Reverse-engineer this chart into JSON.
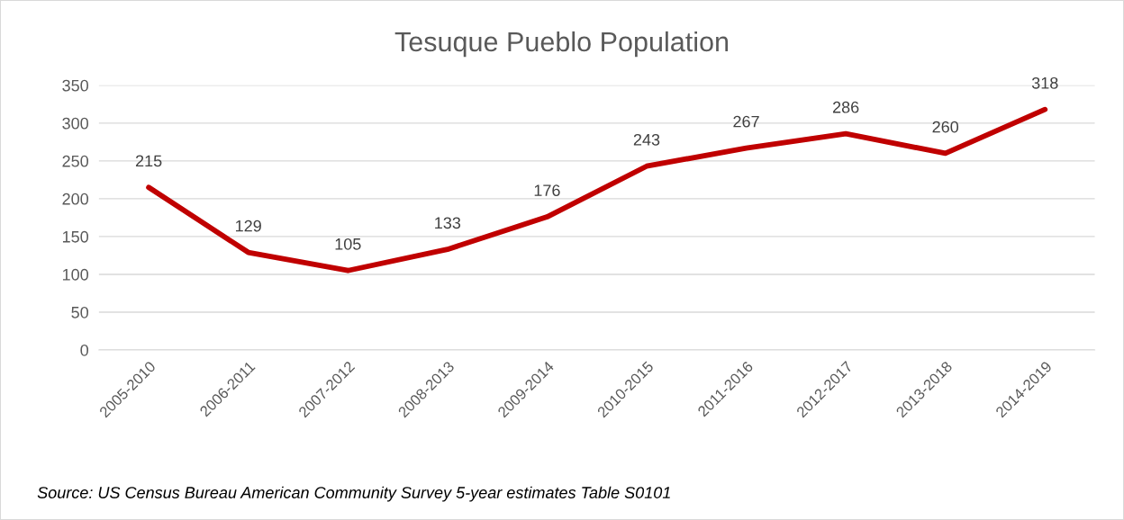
{
  "chart_data": {
    "type": "line",
    "title": "Tesuque Pueblo Population",
    "categories": [
      "2005-2010",
      "2006-2011",
      "2007-2012",
      "2008-2013",
      "2009-2014",
      "2010-2015",
      "2011-2016",
      "2012-2017",
      "2013-2018",
      "2014-2019"
    ],
    "series": [
      {
        "color": "#c00000",
        "values": [
          215,
          129,
          105,
          133,
          176,
          243,
          267,
          286,
          260,
          318
        ]
      }
    ],
    "ylim": [
      0,
      350
    ],
    "yticks": [
      0,
      50,
      100,
      150,
      200,
      250,
      300,
      350
    ],
    "grid": "y",
    "data_labels": true,
    "marker": "none",
    "line_style": "solid",
    "annotations": [
      "Source: US Census Bureau American Community Survey 5-year estimates Table S0101"
    ]
  }
}
